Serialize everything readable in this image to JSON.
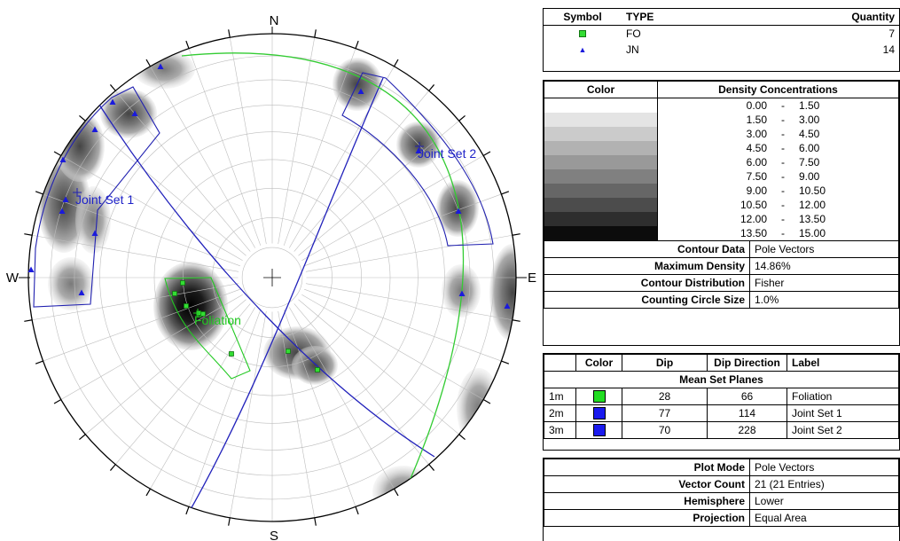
{
  "compass": {
    "north": "N",
    "south": "S",
    "east": "E",
    "west": "W"
  },
  "labels": {
    "set1": "Joint Set 1",
    "set2": "Joint Set 2",
    "foliation": "Foliation"
  },
  "colors": {
    "fo": "#22c922",
    "jn": "#1a1adc",
    "set_window": "#2020b0",
    "fo_window": "#22c922"
  },
  "symbols": {
    "headers": {
      "symbol": "Symbol",
      "type": "TYPE",
      "quantity": "Quantity"
    },
    "rows": [
      {
        "icon": "green-square-icon",
        "type": "FO",
        "quantity": "7"
      },
      {
        "icon": "blue-triangle-icon",
        "type": "JN",
        "quantity": "14"
      }
    ]
  },
  "density": {
    "headers": {
      "color": "Color",
      "title": "Density Concentrations"
    },
    "rows": [
      {
        "shade": "#ffffff",
        "low": "0.00",
        "sep": "-",
        "high": "1.50"
      },
      {
        "shade": "#e4e4e4",
        "low": "1.50",
        "sep": "-",
        "high": "3.00"
      },
      {
        "shade": "#cbcbcb",
        "low": "3.00",
        "sep": "-",
        "high": "4.50"
      },
      {
        "shade": "#b2b2b2",
        "low": "4.50",
        "sep": "-",
        "high": "6.00"
      },
      {
        "shade": "#999999",
        "low": "6.00",
        "sep": "-",
        "high": "7.50"
      },
      {
        "shade": "#808080",
        "low": "7.50",
        "sep": "-",
        "high": "9.00"
      },
      {
        "shade": "#666666",
        "low": "9.00",
        "sep": "-",
        "high": "10.50"
      },
      {
        "shade": "#4c4c4c",
        "low": "10.50",
        "sep": "-",
        "high": "12.00"
      },
      {
        "shade": "#2e2e2e",
        "low": "12.00",
        "sep": "-",
        "high": "13.50"
      },
      {
        "shade": "#0c0c0c",
        "low": "13.50",
        "sep": "-",
        "high": "15.00"
      }
    ]
  },
  "contour": {
    "rows": [
      {
        "label": "Contour Data",
        "value": "Pole Vectors"
      },
      {
        "label": "Maximum Density",
        "value": "14.86%"
      },
      {
        "label": "Contour Distribution",
        "value": "Fisher"
      },
      {
        "label": "Counting Circle Size",
        "value": "1.0%"
      }
    ]
  },
  "mean_planes": {
    "headers": {
      "color": "Color",
      "dip": "Dip",
      "dip_direction": "Dip Direction",
      "label": "Label"
    },
    "section_title": "Mean Set Planes",
    "rows": [
      {
        "id": "1m",
        "color": "#22dd22",
        "dip": "28",
        "dip_direction": "66",
        "label": "Foliation"
      },
      {
        "id": "2m",
        "color": "#1a1aee",
        "dip": "77",
        "dip_direction": "114",
        "label": "Joint Set 1"
      },
      {
        "id": "3m",
        "color": "#1a1aee",
        "dip": "70",
        "dip_direction": "228",
        "label": "Joint Set 2"
      }
    ]
  },
  "plot_info": {
    "rows": [
      {
        "label": "Plot Mode",
        "value": "Pole Vectors"
      },
      {
        "label": "Vector Count",
        "value": "21 (21 Entries)"
      },
      {
        "label": "Hemisphere",
        "value": "Lower"
      },
      {
        "label": "Projection",
        "value": "Equal Area"
      }
    ]
  }
}
